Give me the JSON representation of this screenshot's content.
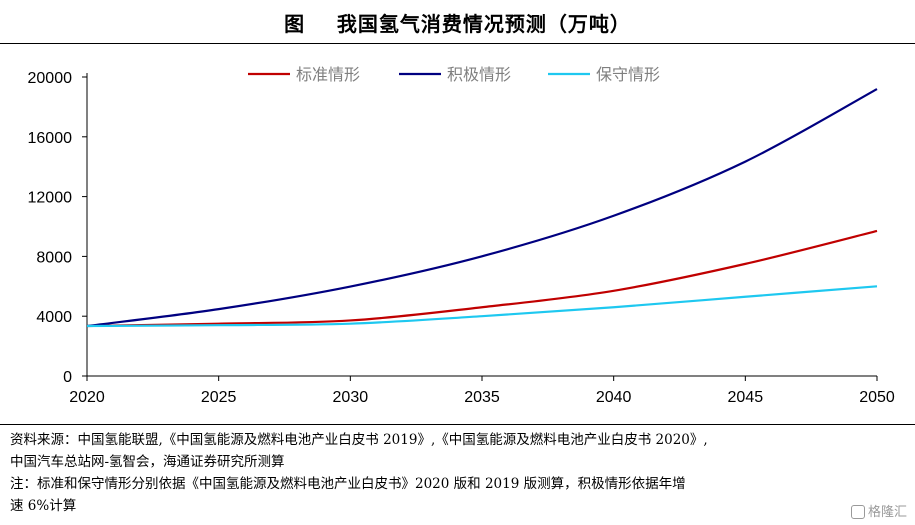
{
  "title": "图    我国氢气消费情况预测（万吨）",
  "chart_data": {
    "type": "line",
    "title": "我国氢气消费情况预测（万吨）",
    "xlabel": "",
    "ylabel": "",
    "xlim": [
      2020,
      2050
    ],
    "ylim": [
      0,
      20000
    ],
    "x_ticks": [
      2020,
      2025,
      2030,
      2035,
      2040,
      2045,
      2050
    ],
    "y_ticks": [
      0,
      4000,
      8000,
      12000,
      16000,
      20000
    ],
    "grid": false,
    "legend_position": "top",
    "series": [
      {
        "name": "标准情形",
        "color": "#c00000",
        "x": [
          2020,
          2025,
          2030,
          2035,
          2040,
          2045,
          2050
        ],
        "values": [
          3342,
          3500,
          3715,
          4600,
          5700,
          7500,
          9700
        ]
      },
      {
        "name": "积极情形",
        "color": "#000080",
        "x": [
          2020,
          2025,
          2030,
          2035,
          2040,
          2045,
          2050
        ],
        "values": [
          3342,
          4472,
          5985,
          8009,
          10718,
          14343,
          19194
        ]
      },
      {
        "name": "保守情形",
        "color": "#1ec8f0",
        "x": [
          2020,
          2025,
          2030,
          2035,
          2040,
          2045,
          2050
        ],
        "values": [
          3342,
          3400,
          3500,
          4000,
          4600,
          5300,
          6000
        ]
      }
    ]
  },
  "footer": {
    "source": "资料来源：中国氢能联盟,《中国氢能源及燃料电池产业白皮书 2019》,《中国氢能源及燃料电池产业白皮书 2020》,",
    "source2": "中国汽车总站网-氢智会，海通证券研究所测算",
    "note": "注：标准和保守情形分别依据《中国氢能源及燃料电池产业白皮书》2020 版和 2019 版测算，积极情形依据年增",
    "note2": "速 6%计算"
  },
  "watermark": "格隆汇"
}
